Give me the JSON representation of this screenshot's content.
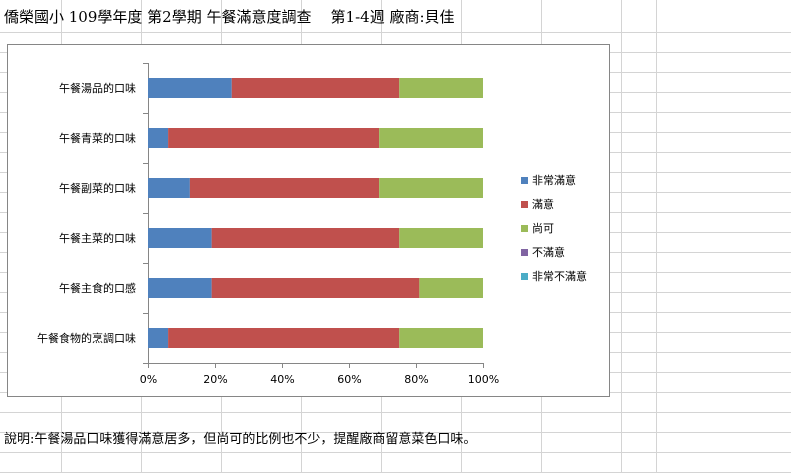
{
  "sheet": {
    "title": "僑榮國小 109學年度 第2學期 午餐滿意度調查    第1-4週 廠商:貝佳",
    "note": "說明:午餐湯品口味獲得滿意居多，但尚可的比例也不少，提醒廠商留意菜色口味。"
  },
  "chart_data": {
    "type": "bar",
    "orientation": "horizontal",
    "stacked": "percent",
    "categories": [
      "午餐湯品的口味",
      "午餐青菜的口味",
      "午餐副菜的口味",
      "午餐主菜的口味",
      "午餐主食的口感",
      "午餐食物的烹調口味"
    ],
    "series": [
      {
        "name": "非常滿意",
        "color": "#4f81bd",
        "values": [
          25,
          6,
          12.5,
          19,
          19,
          6
        ]
      },
      {
        "name": "滿意",
        "color": "#c0504d",
        "values": [
          50,
          63,
          56.5,
          56,
          62,
          69
        ]
      },
      {
        "name": "尚可",
        "color": "#9bbb59",
        "values": [
          25,
          31,
          31,
          25,
          19,
          25
        ]
      },
      {
        "name": "不滿意",
        "color": "#8064a2",
        "values": [
          0,
          0,
          0,
          0,
          0,
          0
        ]
      },
      {
        "name": "非常不滿意",
        "color": "#4bacc6",
        "values": [
          0,
          0,
          0,
          0,
          0,
          0
        ]
      }
    ],
    "xlim": [
      0,
      100
    ],
    "xticks": [
      "0%",
      "20%",
      "40%",
      "60%",
      "80%",
      "100%"
    ],
    "grid": false,
    "legend_position": "right"
  }
}
